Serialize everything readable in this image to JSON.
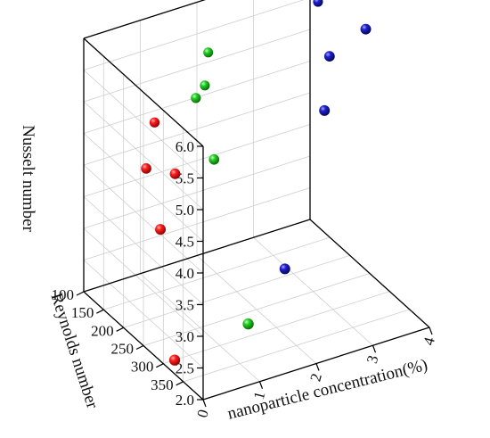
{
  "chart_data": {
    "type": "scatter",
    "subtype": "3d-scatter",
    "title": "",
    "x_axis": {
      "label": "nanoparticle concentration(%)",
      "range": [
        0,
        4
      ],
      "ticks": [
        0,
        1,
        2,
        3,
        4
      ],
      "tick_labels": [
        "0",
        "1",
        "2",
        "3",
        "4"
      ]
    },
    "y_axis": {
      "label": "Reynolds number",
      "range": [
        100,
        400
      ],
      "ticks": [
        100,
        150,
        200,
        250,
        300,
        350
      ],
      "tick_labels": [
        "100",
        "150",
        "200",
        "250",
        "300",
        "350"
      ]
    },
    "z_axis": {
      "label": "Nusselt number",
      "range": [
        2.0,
        6.0
      ],
      "ticks": [
        2.0,
        2.5,
        3.0,
        3.5,
        4.0,
        4.5,
        5.0,
        5.5,
        6.0
      ],
      "tick_labels": [
        "2.0",
        "2.5",
        "3.0",
        "3.5",
        "4.0",
        "4.5",
        "5.0",
        "5.5",
        "6.0"
      ]
    },
    "grid": true,
    "series": [
      {
        "color": "#e01010",
        "points": [
          {
            "x": 0.2,
            "y": 300,
            "z": 2.0
          },
          {
            "x": 0.3,
            "y": 250,
            "z": 3.75
          },
          {
            "x": 0.4,
            "y": 200,
            "z": 4.4
          },
          {
            "x": 0.7,
            "y": 230,
            "z": 4.4
          },
          {
            "x": 0.9,
            "y": 150,
            "z": 4.7
          }
        ]
      },
      {
        "color": "#22c622",
        "points": [
          {
            "x": 1.5,
            "y": 300,
            "z": 2.2
          },
          {
            "x": 1.6,
            "y": 200,
            "z": 4.2
          },
          {
            "x": 1.7,
            "y": 140,
            "z": 4.8
          },
          {
            "x": 2.0,
            "y": 120,
            "z": 4.8
          },
          {
            "x": 2.2,
            "y": 100,
            "z": 5.15
          }
        ]
      },
      {
        "color": "#1818b8",
        "points": [
          {
            "x": 2.5,
            "y": 250,
            "z": 2.5
          },
          {
            "x": 3.2,
            "y": 250,
            "z": 4.8
          },
          {
            "x": 3.5,
            "y": 220,
            "z": 5.4
          },
          {
            "x": 4.0,
            "y": 240,
            "z": 5.8
          },
          {
            "x": 4.0,
            "y": 120,
            "z": 5.55
          }
        ]
      }
    ]
  }
}
